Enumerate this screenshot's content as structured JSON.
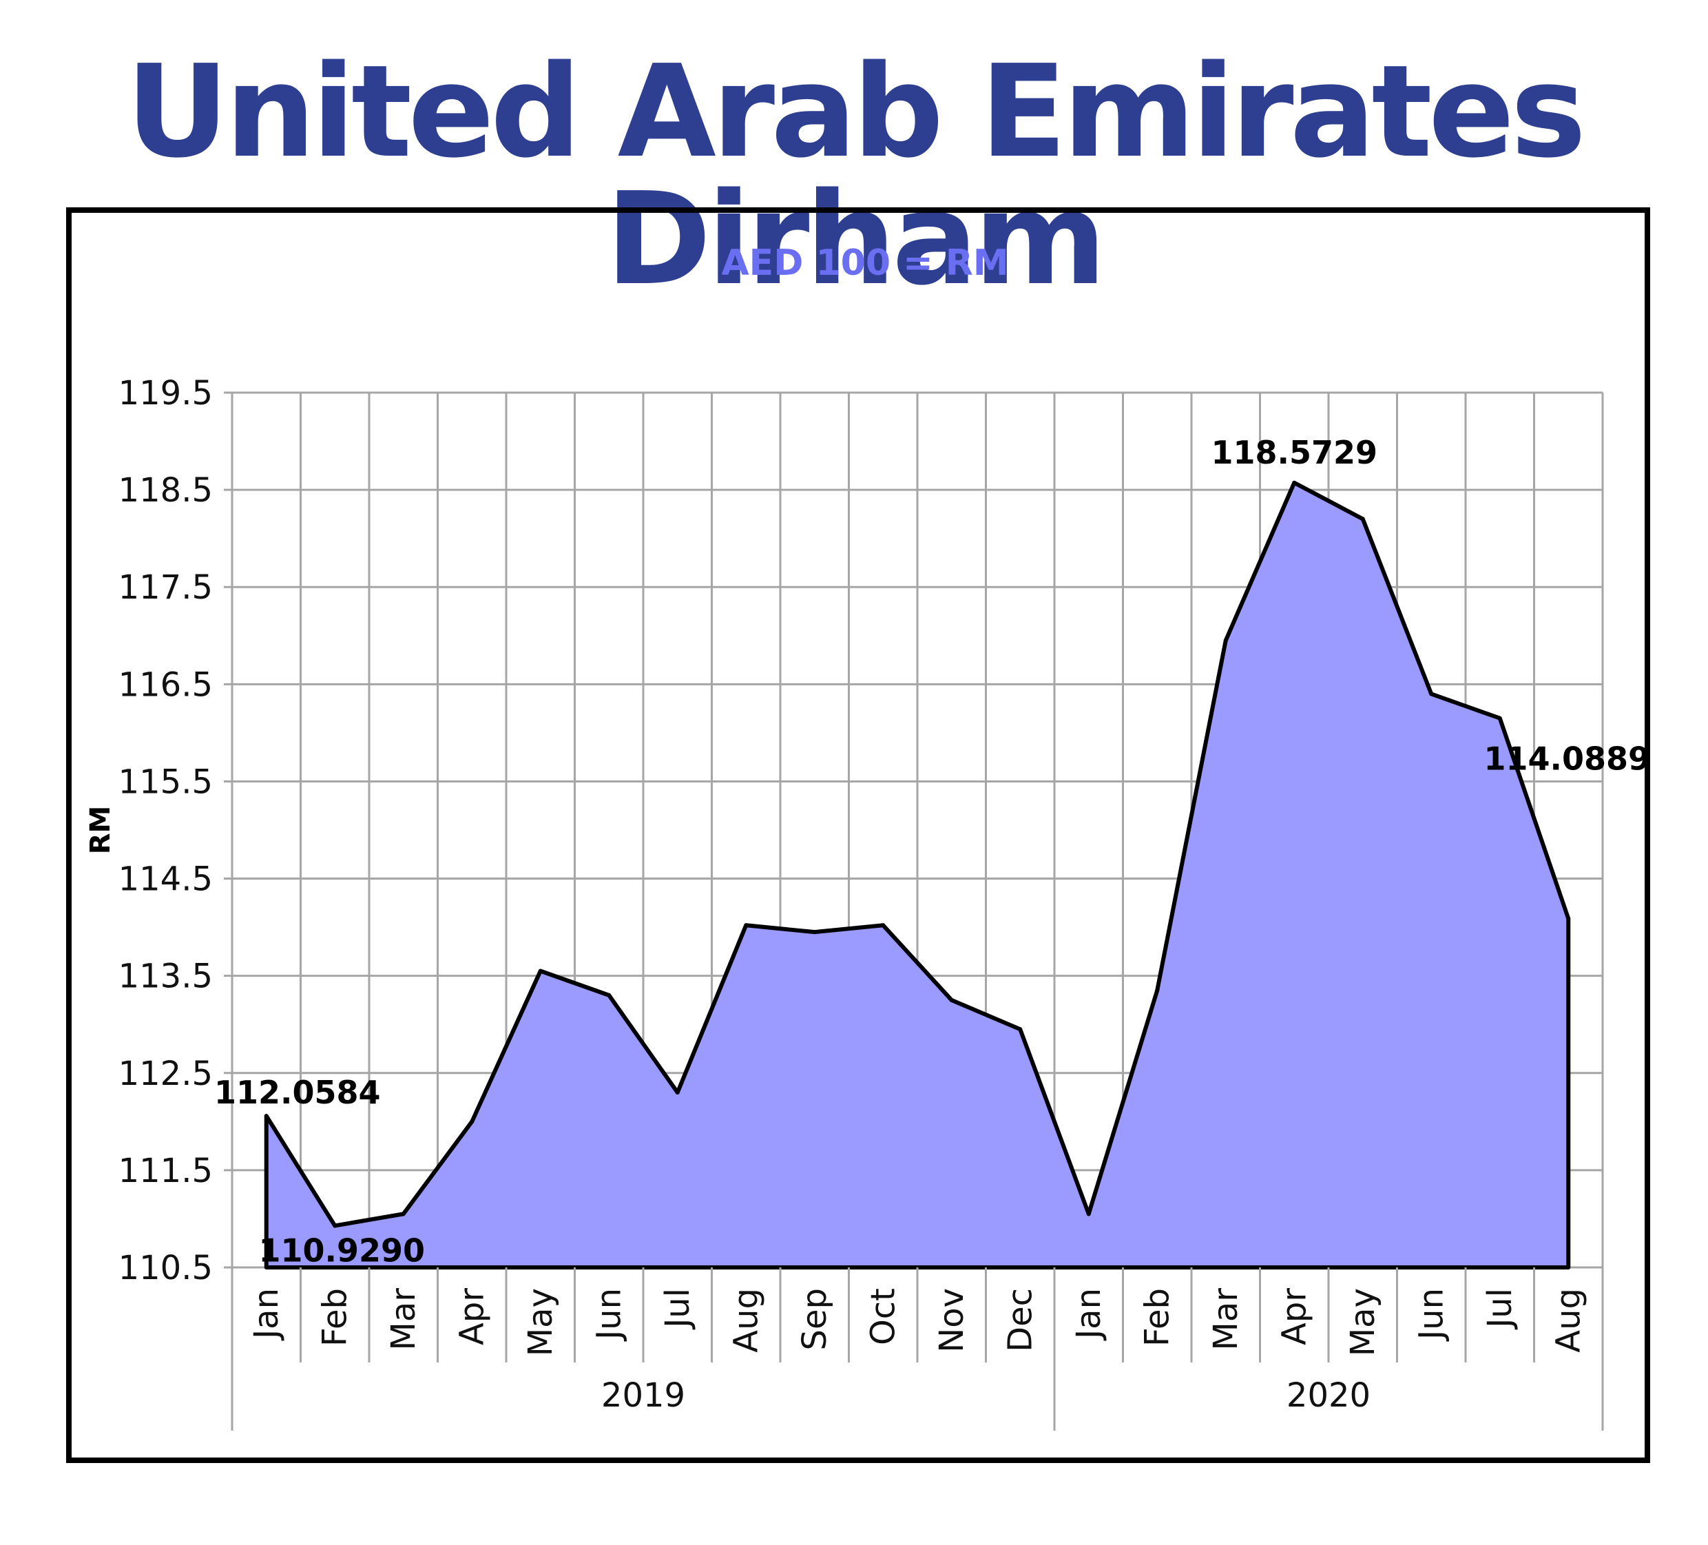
{
  "title": "United Arab Emirates Dirham",
  "colors": {
    "title": "#2e3f92",
    "subtitle": "#6a6ef0",
    "area_fill": "#9b9bff",
    "line": "#000000",
    "grid": "#a6a6a6"
  },
  "chart_data": {
    "type": "area",
    "subtitle": "AED 100 = RM",
    "ylabel": "RM",
    "xlabel": "",
    "ylim": [
      110.5,
      119.5
    ],
    "yticks": [
      "110.5",
      "111.5",
      "112.5",
      "113.5",
      "114.5",
      "115.5",
      "116.5",
      "117.5",
      "118.5",
      "119.5"
    ],
    "grid": true,
    "legend": "none",
    "categories": [
      "Jan",
      "Feb",
      "Mar",
      "Apr",
      "May",
      "Jun",
      "Jul",
      "Aug",
      "Sep",
      "Oct",
      "Nov",
      "Dec",
      "Jan",
      "Feb",
      "Mar",
      "Apr",
      "May",
      "Jun",
      "Jul",
      "Aug"
    ],
    "year_groups": [
      {
        "label": "2019",
        "count": 12
      },
      {
        "label": "2020",
        "count": 8
      }
    ],
    "values": [
      112.0584,
      110.929,
      111.05,
      112.0,
      113.55,
      113.3,
      112.3,
      114.02,
      113.95,
      114.02,
      113.25,
      112.95,
      111.05,
      113.35,
      116.95,
      118.5729,
      118.2,
      116.4,
      116.15,
      114.0889
    ],
    "data_labels": [
      {
        "index": 0,
        "text": "112.0584"
      },
      {
        "index": 1,
        "text": "110.9290"
      },
      {
        "index": 15,
        "text": "118.5729"
      },
      {
        "index": 19,
        "text": "114.0889"
      }
    ]
  }
}
